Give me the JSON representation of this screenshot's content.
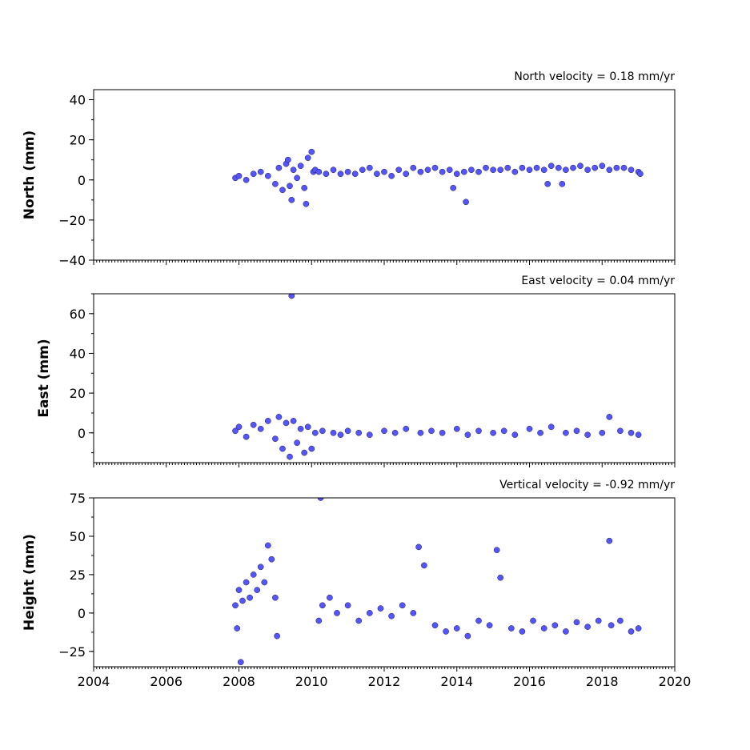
{
  "chart_data": [
    {
      "type": "scatter",
      "title": "North velocity = 0.18 mm/yr",
      "ylabel": "North (mm)",
      "xlabel": "",
      "xlim": [
        2004,
        2020
      ],
      "ylim": [
        -40,
        45
      ],
      "yticks": [
        -40,
        -20,
        0,
        20,
        40
      ],
      "ytick_labels": [
        "−40",
        "−20",
        "0",
        "20",
        "40"
      ],
      "xticks": [
        2004,
        2006,
        2008,
        2010,
        2012,
        2014,
        2016,
        2018,
        2020
      ],
      "xtick_labels": [
        "",
        "",
        "",
        "",
        "",
        "",
        "",
        "",
        ""
      ],
      "series": [
        {
          "x": [
            2007.9,
            2008.0,
            2008.2,
            2008.4,
            2008.6,
            2008.8,
            2009.0,
            2009.1,
            2009.2,
            2009.3,
            2009.35,
            2009.4,
            2009.45,
            2009.5,
            2009.6,
            2009.7,
            2009.8,
            2009.85,
            2009.9,
            2010.0,
            2010.05,
            2010.1,
            2010.2,
            2010.4,
            2010.6,
            2010.8,
            2011.0,
            2011.2,
            2011.4,
            2011.6,
            2011.8,
            2012.0,
            2012.2,
            2012.4,
            2012.6,
            2012.8,
            2013.0,
            2013.2,
            2013.4,
            2013.6,
            2013.8,
            2013.9,
            2014.0,
            2014.2,
            2014.25,
            2014.4,
            2014.6,
            2014.8,
            2015.0,
            2015.2,
            2015.4,
            2015.6,
            2015.8,
            2016.0,
            2016.2,
            2016.4,
            2016.5,
            2016.6,
            2016.8,
            2016.9,
            2017.0,
            2017.2,
            2017.4,
            2017.6,
            2017.8,
            2018.0,
            2018.2,
            2018.4,
            2018.6,
            2018.8,
            2019.0,
            2019.05
          ],
          "y": [
            1,
            2,
            0,
            3,
            4,
            2,
            -2,
            6,
            -5,
            8,
            10,
            -3,
            -10,
            5,
            1,
            7,
            -4,
            -12,
            11,
            14,
            4,
            5,
            4,
            3,
            5,
            3,
            4,
            3,
            5,
            6,
            3,
            4,
            2,
            5,
            3,
            6,
            4,
            5,
            6,
            4,
            5,
            -4,
            3,
            4,
            -11,
            5,
            4,
            6,
            5,
            5,
            6,
            4,
            6,
            5,
            6,
            5,
            -2,
            7,
            6,
            -2,
            5,
            6,
            7,
            5,
            6,
            7,
            5,
            6,
            6,
            5,
            4,
            3
          ]
        }
      ]
    },
    {
      "type": "scatter",
      "title": "East velocity = 0.04 mm/yr",
      "ylabel": "East (mm)",
      "xlabel": "",
      "xlim": [
        2004,
        2020
      ],
      "ylim": [
        -15,
        70
      ],
      "yticks": [
        0,
        20,
        40,
        60
      ],
      "ytick_labels": [
        "0",
        "20",
        "40",
        "60"
      ],
      "xticks": [
        2004,
        2006,
        2008,
        2010,
        2012,
        2014,
        2016,
        2018,
        2020
      ],
      "xtick_labels": [
        "",
        "",
        "",
        "",
        "",
        "",
        "",
        "",
        ""
      ],
      "series": [
        {
          "x": [
            2007.9,
            2008.0,
            2008.2,
            2008.4,
            2008.6,
            2008.8,
            2009.0,
            2009.1,
            2009.2,
            2009.3,
            2009.4,
            2009.45,
            2009.5,
            2009.6,
            2009.7,
            2009.8,
            2009.9,
            2010.0,
            2010.1,
            2010.3,
            2010.6,
            2010.8,
            2011.0,
            2011.3,
            2011.6,
            2012.0,
            2012.3,
            2012.6,
            2013.0,
            2013.3,
            2013.6,
            2014.0,
            2014.3,
            2014.6,
            2015.0,
            2015.3,
            2015.6,
            2016.0,
            2016.3,
            2016.6,
            2017.0,
            2017.3,
            2017.6,
            2018.0,
            2018.2,
            2018.5,
            2018.8,
            2019.0
          ],
          "y": [
            1,
            3,
            -2,
            4,
            2,
            6,
            -3,
            8,
            -8,
            5,
            -12,
            69,
            6,
            -5,
            2,
            -10,
            3,
            -8,
            0,
            1,
            0,
            -1,
            1,
            0,
            -1,
            1,
            0,
            2,
            0,
            1,
            0,
            2,
            -1,
            1,
            0,
            1,
            -1,
            2,
            0,
            3,
            0,
            1,
            -1,
            0,
            8,
            1,
            0,
            -1
          ]
        }
      ]
    },
    {
      "type": "scatter",
      "title": "Vertical velocity = -0.92 mm/yr",
      "ylabel": "Height (mm)",
      "xlabel": "",
      "xlim": [
        2004,
        2020
      ],
      "ylim": [
        -35,
        75
      ],
      "yticks": [
        -25,
        0,
        25,
        50,
        75
      ],
      "ytick_labels": [
        "−25",
        "0",
        "25",
        "50",
        "75"
      ],
      "xticks": [
        2004,
        2006,
        2008,
        2010,
        2012,
        2014,
        2016,
        2018,
        2020
      ],
      "xtick_labels": [
        "2004",
        "2006",
        "2008",
        "2010",
        "2012",
        "2014",
        "2016",
        "2018",
        "2020"
      ],
      "series": [
        {
          "x": [
            2007.9,
            2007.95,
            2008.0,
            2008.05,
            2008.1,
            2008.2,
            2008.3,
            2008.4,
            2008.5,
            2008.6,
            2008.7,
            2008.8,
            2008.9,
            2009.0,
            2009.05,
            2010.2,
            2010.3,
            2010.5,
            2010.7,
            2011.0,
            2011.3,
            2011.6,
            2011.9,
            2012.2,
            2012.5,
            2012.8,
            2012.95,
            2013.1,
            2013.4,
            2013.7,
            2014.0,
            2014.3,
            2014.6,
            2014.9,
            2015.1,
            2015.2,
            2015.5,
            2015.8,
            2016.1,
            2016.4,
            2016.7,
            2017.0,
            2017.3,
            2017.6,
            2017.9,
            2018.2,
            2018.25,
            2018.5,
            2018.8,
            2019.0,
            2010.25
          ],
          "y": [
            5,
            -10,
            15,
            -32,
            8,
            20,
            10,
            25,
            15,
            30,
            20,
            44,
            35,
            10,
            -15,
            -5,
            5,
            10,
            0,
            5,
            -5,
            0,
            3,
            -2,
            5,
            0,
            43,
            31,
            -8,
            -12,
            -10,
            -15,
            -5,
            -8,
            41,
            23,
            -10,
            -12,
            -5,
            -10,
            -8,
            -12,
            -6,
            -9,
            -5,
            47,
            -8,
            -5,
            -12,
            -10,
            75
          ]
        }
      ]
    }
  ]
}
